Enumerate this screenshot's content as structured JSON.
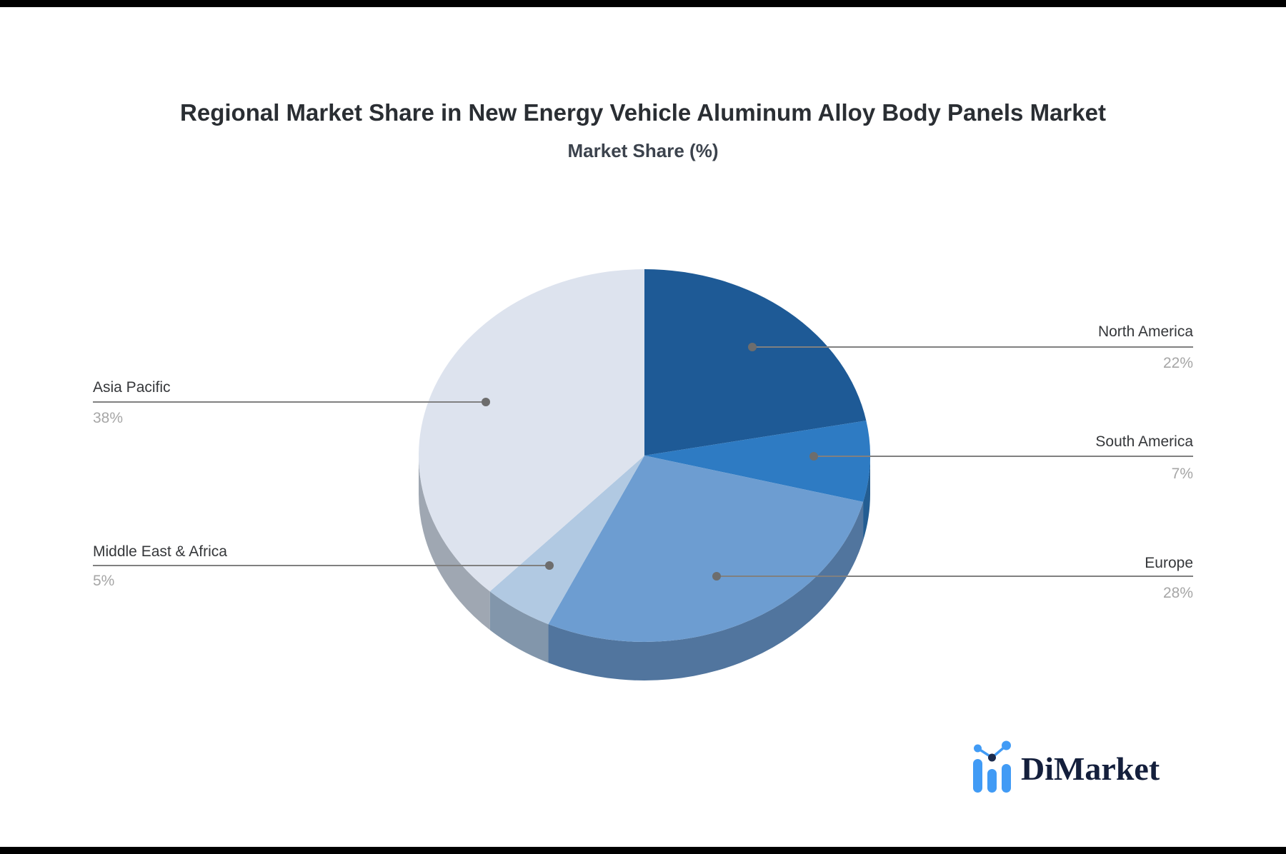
{
  "page": {
    "background": "#ffffff",
    "border_bar_color": "#000000"
  },
  "title": "Regional Market Share in New Energy Vehicle Aluminum Alloy Body Panels Market",
  "subtitle": "Market Share (%)",
  "chart_data": {
    "type": "pie",
    "title": "Regional Market Share in New Energy Vehicle Aluminum Alloy Body Panels Market",
    "subtitle": "Market Share (%)",
    "unit": "%",
    "start_angle_deg": 0,
    "direction": "clockwise",
    "style": "3d-pie",
    "legend_position": "callout-labels",
    "slices": [
      {
        "label": "North America",
        "value": 22,
        "pct_label": "22%",
        "color": "#1E5A96",
        "side_color": "#174674",
        "callout_side": "right"
      },
      {
        "label": "South America",
        "value": 7,
        "pct_label": "7%",
        "color": "#2E7BC3",
        "side_color": "#235D92",
        "callout_side": "right"
      },
      {
        "label": "Europe",
        "value": 28,
        "pct_label": "28%",
        "color": "#6D9DD1",
        "side_color": "#51759E",
        "callout_side": "right"
      },
      {
        "label": "Middle East & Africa",
        "value": 5,
        "pct_label": "5%",
        "color": "#B1C9E2",
        "side_color": "#8296AB",
        "callout_side": "left"
      },
      {
        "label": "Asia Pacific",
        "value": 38,
        "pct_label": "38%",
        "color": "#DDE3EE",
        "side_color": "#9FA7B2",
        "callout_side": "left"
      }
    ]
  },
  "logo": {
    "text": "DiMarket",
    "icon": "bar-line-chart-icon",
    "accent_color": "#419BF5",
    "dark_color": "#1B2B4D",
    "text_color": "#141F3C"
  }
}
